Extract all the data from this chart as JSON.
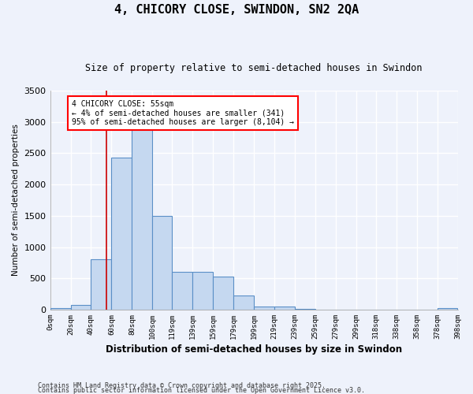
{
  "title": "4, CHICORY CLOSE, SWINDON, SN2 2QA",
  "subtitle": "Size of property relative to semi-detached houses in Swindon",
  "xlabel": "Distribution of semi-detached houses by size in Swindon",
  "ylabel": "Number of semi-detached properties",
  "footnote1": "Contains HM Land Registry data © Crown copyright and database right 2025.",
  "footnote2": "Contains public sector information licensed under the Open Government Licence v3.0.",
  "bar_color": "#c5d8f0",
  "bar_edge_color": "#5a8fc7",
  "bin_edges": [
    0,
    20,
    40,
    60,
    80,
    100,
    119,
    139,
    159,
    179,
    199,
    219,
    239,
    259,
    279,
    299,
    318,
    338,
    358,
    378,
    398
  ],
  "bin_labels": [
    "0sqm",
    "20sqm",
    "40sqm",
    "60sqm",
    "80sqm",
    "100sqm",
    "119sqm",
    "139sqm",
    "159sqm",
    "179sqm",
    "199sqm",
    "219sqm",
    "239sqm",
    "259sqm",
    "279sqm",
    "299sqm",
    "318sqm",
    "338sqm",
    "358sqm",
    "378sqm",
    "398sqm"
  ],
  "bar_heights": [
    30,
    80,
    800,
    2430,
    2900,
    1500,
    600,
    600,
    530,
    230,
    50,
    50,
    10,
    5,
    5,
    5,
    0,
    5,
    5,
    30
  ],
  "property_size": 55,
  "annotation_line1": "4 CHICORY CLOSE: 55sqm",
  "annotation_line2": "← 4% of semi-detached houses are smaller (341)",
  "annotation_line3": "95% of semi-detached houses are larger (8,104) →",
  "ylim": [
    0,
    3500
  ],
  "background_color": "#eef2fb",
  "grid_color": "#ffffff",
  "red_line_color": "#cc0000"
}
